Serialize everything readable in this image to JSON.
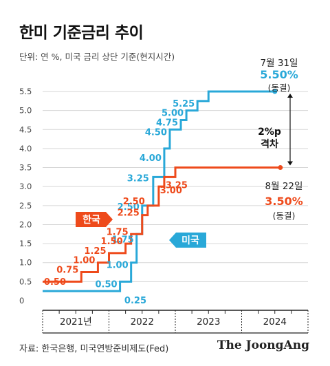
{
  "title": "한미 기준금리 추이",
  "unit_note": "단위: 연 %, 미국 금리 상단 기준(현지시간)",
  "source": "자료: 한국은행, 미국연방준비제도(Fed)",
  "brand": "The JoongAng",
  "colors": {
    "us": "#29a8d8",
    "korea": "#ee4a1b",
    "grid": "#d6d6d6"
  },
  "chart_data": {
    "type": "line",
    "step": true,
    "title": "한미 기준금리 추이",
    "ylabel": "",
    "xlabel": "",
    "ylim": [
      0,
      5.5
    ],
    "yticks": [
      "0",
      "0.5",
      "1.0",
      "1.5",
      "2.0",
      "2.5",
      "3.0",
      "3.5",
      "4.0",
      "4.5",
      "5.0",
      "5.5"
    ],
    "xticks": [
      "2021년",
      "2022",
      "2023",
      "2024"
    ],
    "xlim": [
      "2021-01",
      "2024-12"
    ],
    "grid": true,
    "series": [
      {
        "name": "미국",
        "color": "#29a8d8",
        "points": [
          {
            "x": "2021-01",
            "y": 0.25
          },
          {
            "x": "2022-03",
            "y": 0.5,
            "label": "0.50"
          },
          {
            "x": "2022-05",
            "y": 1.0,
            "label": "1.00"
          },
          {
            "x": "2022-06",
            "y": 1.75,
            "label": "1.75"
          },
          {
            "x": "2022-07",
            "y": 2.5,
            "label": "2.50"
          },
          {
            "x": "2022-09",
            "y": 3.25,
            "label": "3.25"
          },
          {
            "x": "2022-11",
            "y": 4.0,
            "label": "4.00"
          },
          {
            "x": "2022-12",
            "y": 4.5,
            "label": "4.50"
          },
          {
            "x": "2023-02",
            "y": 4.75,
            "label": "4.75"
          },
          {
            "x": "2023-03",
            "y": 5.0,
            "label": "5.00"
          },
          {
            "x": "2023-05",
            "y": 5.25,
            "label": "5.25"
          },
          {
            "x": "2023-07",
            "y": 5.5
          },
          {
            "x": "2024-07",
            "y": 5.5
          }
        ],
        "first_label": "0.25"
      },
      {
        "name": "한국",
        "color": "#ee4a1b",
        "points": [
          {
            "x": "2021-01",
            "y": 0.5
          },
          {
            "x": "2021-08",
            "y": 0.75,
            "label": "0.75"
          },
          {
            "x": "2021-11",
            "y": 1.0,
            "label": "1.00"
          },
          {
            "x": "2022-01",
            "y": 1.25,
            "label": "1.25"
          },
          {
            "x": "2022-04",
            "y": 1.5,
            "label": "1.50"
          },
          {
            "x": "2022-05",
            "y": 1.75,
            "label": "1.75"
          },
          {
            "x": "2022-07",
            "y": 2.25,
            "label": "2.25"
          },
          {
            "x": "2022-08",
            "y": 2.5,
            "label": "2.50"
          },
          {
            "x": "2022-10",
            "y": 3.0,
            "label": "3.00"
          },
          {
            "x": "2022-11",
            "y": 3.25,
            "label": "3.25"
          },
          {
            "x": "2023-01",
            "y": 3.5
          },
          {
            "x": "2024-08",
            "y": 3.5
          }
        ],
        "first_label": "0.50"
      }
    ],
    "legend": {
      "korea_tag": "한국",
      "us_tag": "미국"
    },
    "annotations": {
      "us_end": {
        "date": "7월 31일",
        "value": "5.50%",
        "note": "(동결)"
      },
      "kr_end": {
        "date": "8월 22일",
        "value": "3.50%",
        "note": "(동결)"
      },
      "gap_line1": "2%p",
      "gap_line2": "격차"
    }
  }
}
